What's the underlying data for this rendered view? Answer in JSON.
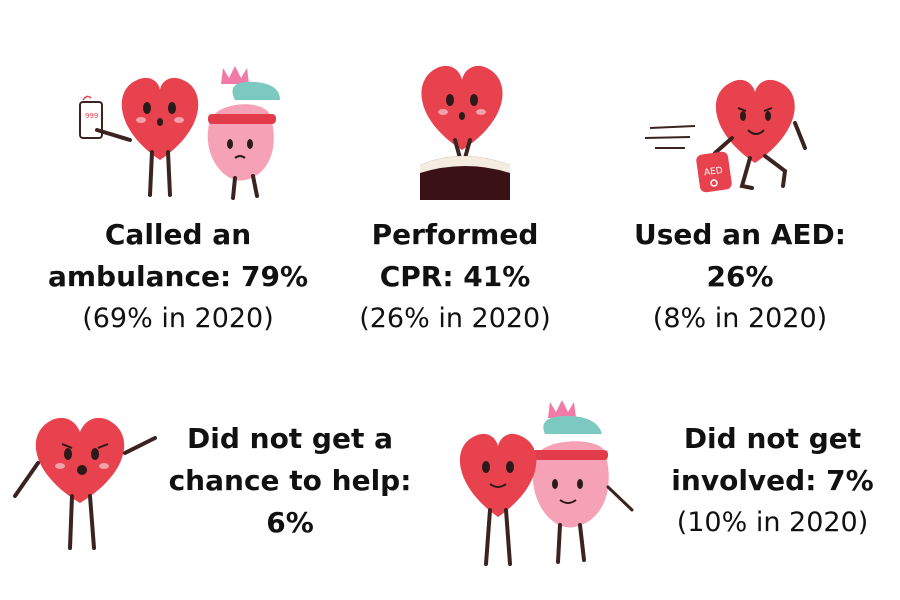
{
  "colors": {
    "heart": "#e8424e",
    "heart_pink": "#f6a2b6",
    "crown": "#f27aa6",
    "band": "#e23b4a",
    "teal": "#7cc9c2",
    "limb": "#3b2420",
    "text": "#111111"
  },
  "stats": [
    {
      "bold_lines": [
        "Called an",
        "ambulance: 79%"
      ],
      "note": "(69% in 2020)",
      "icon": "heart-with-phone-and-pink-heart-icon"
    },
    {
      "bold_lines": [
        "Performed",
        "CPR: 41%"
      ],
      "note": "(26% in 2020)",
      "icon": "heart-doing-cpr-icon"
    },
    {
      "bold_lines": [
        "Used an AED:",
        "26%"
      ],
      "note": "(8% in 2020)",
      "icon": "running-heart-with-aed-icon"
    },
    {
      "bold_lines": [
        "Did not get a",
        "chance to help:",
        "6%"
      ],
      "note": "",
      "icon": "waving-heart-icon"
    },
    {
      "bold_lines": [
        "Did not get",
        "involved: 7%"
      ],
      "note": "(10% in 2020)",
      "icon": "two-hearts-icon"
    }
  ],
  "aed_label": "AED",
  "phone_label": "999"
}
